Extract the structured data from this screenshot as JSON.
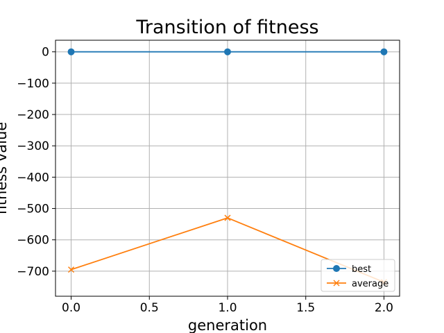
{
  "chart_data": {
    "type": "line",
    "title": "Transition of fitness",
    "xlabel": "generation",
    "ylabel": "fitness value",
    "x": [
      0,
      1,
      2
    ],
    "xlim": [
      -0.1,
      2.1
    ],
    "ylim": [
      -780,
      37
    ],
    "xticks": [
      0.0,
      0.5,
      1.0,
      1.5,
      2.0
    ],
    "xtick_labels": [
      "0.0",
      "0.5",
      "1.0",
      "1.5",
      "2.0"
    ],
    "yticks": [
      0,
      -100,
      -200,
      -300,
      -400,
      -500,
      -600,
      -700
    ],
    "ytick_labels": [
      "0",
      "−100",
      "−200",
      "−300",
      "−400",
      "−500",
      "−600",
      "−700"
    ],
    "grid": true,
    "legend_position": "lower-right",
    "series": [
      {
        "name": "best",
        "values": [
          0,
          0,
          0
        ],
        "color": "#1f77b4",
        "marker": "circle"
      },
      {
        "name": "average",
        "values": [
          -695,
          -530,
          -735
        ],
        "color": "#ff7f0e",
        "marker": "x"
      }
    ]
  }
}
